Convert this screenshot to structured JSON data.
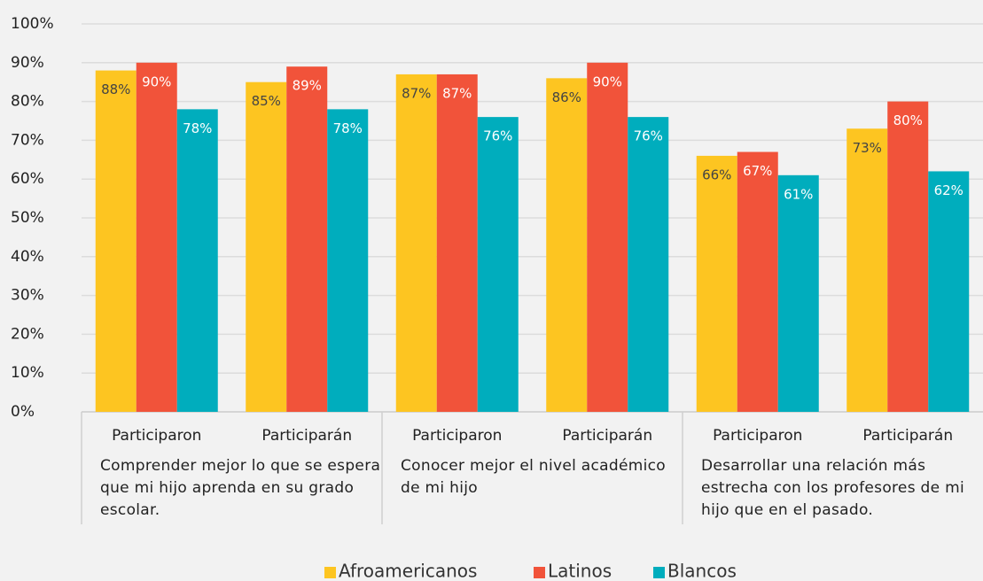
{
  "chart_data": {
    "type": "bar",
    "groups": [
      {
        "label": "Comprender mejor lo que se espera que mi hijo aprenda en su grado escolar.",
        "categories": [
          "Participaron",
          "Participarán"
        ]
      },
      {
        "label": "Conocer mejor el nivel académico de mi hijo",
        "categories": [
          "Participaron",
          "Participarán"
        ]
      },
      {
        "label": "Desarrollar una relación más estrecha con los profesores de mi hijo que en el pasado.",
        "categories": [
          "Participaron",
          "Participarán"
        ]
      }
    ],
    "series": [
      {
        "name": "Afroamericanos",
        "color": "#fdc521",
        "values": [
          88,
          85,
          87,
          86,
          66,
          73
        ],
        "value_labels": [
          "88%",
          "85%",
          "87%",
          "86%",
          "66%",
          "73%"
        ]
      },
      {
        "name": "Latinos",
        "color": "#f1533a",
        "values": [
          90,
          89,
          87,
          90,
          67,
          80
        ],
        "value_labels": [
          "90%",
          "89%",
          "87%",
          "90%",
          "67%",
          "80%"
        ]
      },
      {
        "name": "Blancos",
        "color": "#00adbd",
        "values": [
          78,
          78,
          76,
          76,
          61,
          62
        ],
        "value_labels": [
          "78%",
          "78%",
          "76%",
          "76%",
          "61%",
          "62%"
        ]
      }
    ],
    "ylim": [
      0,
      100
    ],
    "yticks": [
      {
        "value": 0,
        "label": "0%"
      },
      {
        "value": 10,
        "label": "10%"
      },
      {
        "value": 20,
        "label": "20%"
      },
      {
        "value": 30,
        "label": "30%"
      },
      {
        "value": 40,
        "label": "40%"
      },
      {
        "value": 50,
        "label": "50%"
      },
      {
        "value": 60,
        "label": "60%"
      },
      {
        "value": 70,
        "label": "70%"
      },
      {
        "value": 80,
        "label": "80%"
      },
      {
        "value": 90,
        "label": "90%"
      },
      {
        "value": 100,
        "label": "100%"
      }
    ],
    "grid": true,
    "legend": "bottom"
  }
}
